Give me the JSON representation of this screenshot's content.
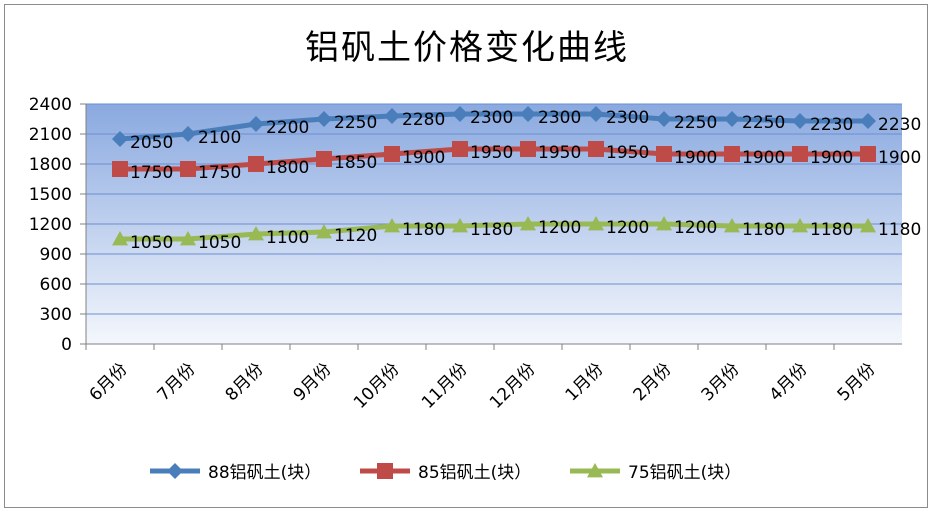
{
  "chart_data": {
    "type": "line",
    "title": "铝矾土价格变化曲线",
    "categories": [
      "6月份",
      "7月份",
      "8月份",
      "9月份",
      "10月份",
      "11月份",
      "12月份",
      "1月份",
      "2月份",
      "3月份",
      "4月份",
      "5月份"
    ],
    "ylim": [
      0,
      2400
    ],
    "yticks": [
      0,
      300,
      600,
      900,
      1200,
      1500,
      1800,
      2100,
      2400
    ],
    "grid": true,
    "legend_position": "bottom",
    "series": [
      {
        "name": "88铝矾土(块）",
        "marker": "diamond",
        "color": "#4a7ebb",
        "values": [
          2050,
          2100,
          2200,
          2250,
          2280,
          2300,
          2300,
          2300,
          2250,
          2250,
          2230,
          2230
        ]
      },
      {
        "name": "85铝矾土(块）",
        "marker": "square",
        "color": "#be4b48",
        "values": [
          1750,
          1750,
          1800,
          1850,
          1900,
          1950,
          1950,
          1950,
          1900,
          1900,
          1900,
          1900
        ]
      },
      {
        "name": "75铝矾土(块）",
        "marker": "triangle",
        "color": "#98b954",
        "values": [
          1050,
          1050,
          1100,
          1120,
          1180,
          1180,
          1200,
          1200,
          1200,
          1180,
          1180,
          1180
        ]
      }
    ],
    "data_labels": [
      [
        "2050",
        "2100",
        "2200",
        "2250",
        "2280",
        "2300",
        "2300",
        "2300",
        "2250",
        "2250",
        "2230",
        "2230"
      ],
      [
        "1750",
        "1750",
        "1800",
        "1850",
        "1900",
        "1950",
        "1950",
        "1950",
        "1900",
        "1900",
        "1900",
        "1900"
      ],
      [
        "1050",
        "1050",
        "1100",
        "1120",
        "1180",
        "1180",
        "1200",
        "1200",
        "1200",
        "1180",
        "1180",
        "1180"
      ]
    ]
  }
}
